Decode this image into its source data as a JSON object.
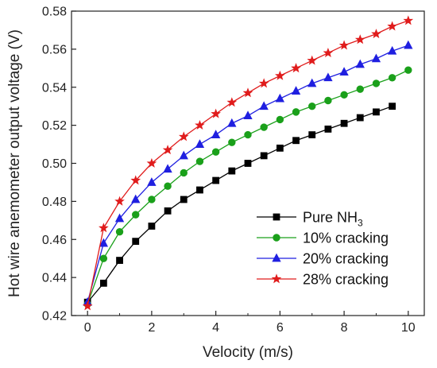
{
  "chart_data": {
    "type": "line",
    "xlabel": "Velocity (m/s)",
    "ylabel": "Hot wire anemometer output voltage (V)",
    "xlim": [
      -0.5,
      10.5
    ],
    "ylim": [
      0.42,
      0.58
    ],
    "xticks": [
      "0",
      "2",
      "4",
      "6",
      "8",
      "10"
    ],
    "xtick_values": [
      0,
      2,
      4,
      6,
      8,
      10
    ],
    "yticks": [
      "0.42",
      "0.44",
      "0.46",
      "0.48",
      "0.50",
      "0.52",
      "0.54",
      "0.56",
      "0.58"
    ],
    "ytick_values": [
      0.42,
      0.44,
      0.46,
      0.48,
      0.5,
      0.52,
      0.54,
      0.56,
      0.58
    ],
    "legend_position": "bottom-right",
    "series": [
      {
        "name": "Pure NH",
        "name_subscript": "3",
        "marker": "square",
        "color": "#000000",
        "x": [
          0,
          0.5,
          1,
          1.5,
          2,
          2.5,
          3,
          3.5,
          4,
          4.5,
          5,
          5.5,
          6,
          6.5,
          7,
          7.5,
          8,
          8.5,
          9,
          9.5
        ],
        "y": [
          0.427,
          0.437,
          0.449,
          0.459,
          0.467,
          0.475,
          0.481,
          0.486,
          0.491,
          0.496,
          0.5,
          0.504,
          0.508,
          0.512,
          0.515,
          0.518,
          0.521,
          0.524,
          0.527,
          0.53
        ]
      },
      {
        "name": "10% cracking",
        "marker": "circle",
        "color": "#1aa01a",
        "x": [
          0,
          0.5,
          1,
          1.5,
          2,
          2.5,
          3,
          3.5,
          4,
          4.5,
          5,
          5.5,
          6,
          6.5,
          7,
          7.5,
          8,
          8.5,
          9,
          9.5,
          10
        ],
        "y": [
          0.426,
          0.45,
          0.464,
          0.473,
          0.481,
          0.488,
          0.495,
          0.501,
          0.506,
          0.511,
          0.515,
          0.519,
          0.523,
          0.527,
          0.53,
          0.533,
          0.536,
          0.539,
          0.542,
          0.545,
          0.549
        ]
      },
      {
        "name": "20% cracking",
        "marker": "triangle",
        "color": "#1f1fe0",
        "x": [
          0,
          0.5,
          1,
          1.5,
          2,
          2.5,
          3,
          3.5,
          4,
          4.5,
          5,
          5.5,
          6,
          6.5,
          7,
          7.5,
          8,
          8.5,
          9,
          9.5,
          10
        ],
        "y": [
          0.427,
          0.458,
          0.471,
          0.481,
          0.49,
          0.497,
          0.504,
          0.51,
          0.515,
          0.521,
          0.525,
          0.53,
          0.534,
          0.538,
          0.542,
          0.545,
          0.548,
          0.552,
          0.555,
          0.559,
          0.562
        ]
      },
      {
        "name": "28% cracking",
        "marker": "star",
        "color": "#e01c1c",
        "x": [
          0,
          0.5,
          1,
          1.5,
          2,
          2.5,
          3,
          3.5,
          4,
          4.5,
          5,
          5.5,
          6,
          6.5,
          7,
          7.5,
          8,
          8.5,
          9,
          9.5,
          10
        ],
        "y": [
          0.425,
          0.466,
          0.48,
          0.491,
          0.5,
          0.507,
          0.514,
          0.52,
          0.526,
          0.532,
          0.537,
          0.542,
          0.546,
          0.55,
          0.554,
          0.558,
          0.562,
          0.565,
          0.568,
          0.572,
          0.575
        ]
      }
    ]
  }
}
